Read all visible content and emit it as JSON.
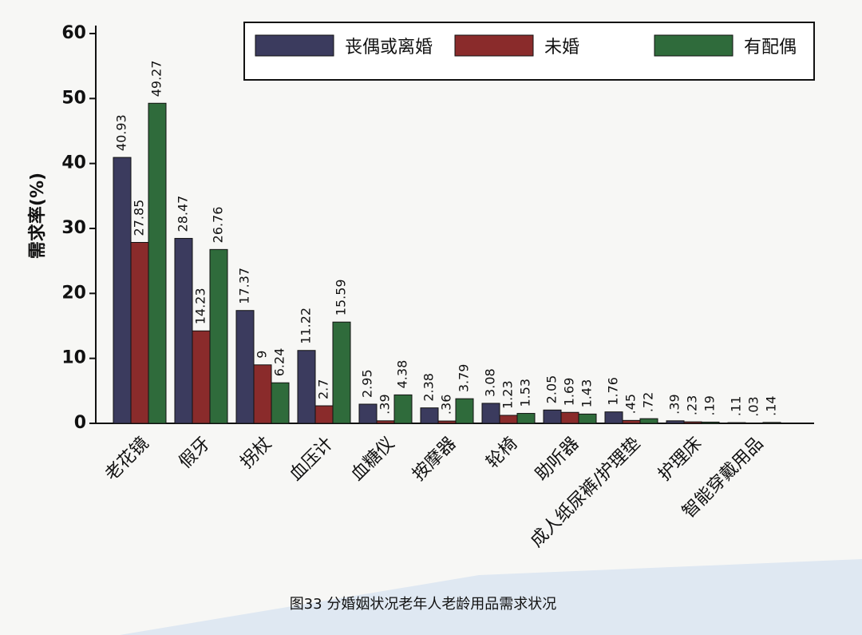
{
  "chart_data": {
    "type": "bar",
    "ylabel": "需求率(%)",
    "caption": "图33 分婚姻状况老年人老龄用品需求状况",
    "categories": [
      "老花镜",
      "假牙",
      "拐杖",
      "血压计",
      "血糖仪",
      "按摩器",
      "轮椅",
      "助听器",
      "成人纸尿裤/护理垫",
      "护理床",
      "智能穿戴用品"
    ],
    "series": [
      {
        "name": "丧偶或离婚",
        "color": "#3b3b5e",
        "values": [
          40.93,
          28.47,
          17.37,
          11.22,
          2.95,
          2.38,
          3.08,
          2.05,
          1.76,
          0.39,
          0.11
        ],
        "value_labels": [
          "40.93",
          "28.47",
          "17.37",
          "11.22",
          "2.95",
          "2.38",
          "3.08",
          "2.05",
          "1.76",
          ".39",
          ".11"
        ]
      },
      {
        "name": "未婚",
        "color": "#8a2b2b",
        "values": [
          27.85,
          14.23,
          9,
          2.7,
          0.39,
          0.36,
          1.23,
          1.69,
          0.45,
          0.23,
          0.03
        ],
        "value_labels": [
          "27.85",
          "14.23",
          "9",
          "2.7",
          ".39",
          ".36",
          "1.23",
          "1.69",
          ".45",
          ".23",
          ".03"
        ]
      },
      {
        "name": "有配偶",
        "color": "#2f6b3b",
        "values": [
          49.27,
          26.76,
          6.24,
          15.59,
          4.38,
          3.79,
          1.53,
          1.43,
          0.72,
          0.19,
          0.14
        ],
        "value_labels": [
          "49.27",
          "26.76",
          "6.24",
          "15.59",
          "4.38",
          "3.79",
          "1.53",
          "1.43",
          ".72",
          ".19",
          ".14"
        ]
      }
    ],
    "ylim": [
      0,
      60
    ],
    "yticks": [
      0,
      10,
      20,
      30,
      40,
      50,
      60
    ],
    "legend": "top-right"
  }
}
